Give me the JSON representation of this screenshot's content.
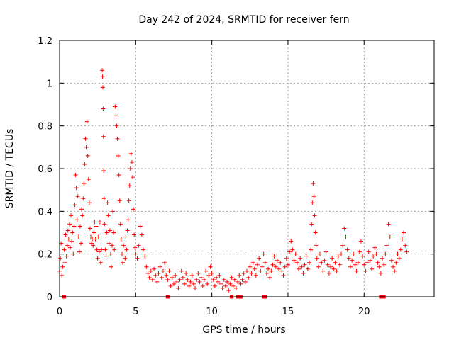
{
  "chart_data": {
    "type": "scatter",
    "title": "Day 242 of 2024, SRMTID for receiver fern",
    "xlabel": "GPS time / hours",
    "ylabel": "SRMTID / TECUs",
    "xlim": [
      0,
      24.6
    ],
    "ylim": [
      0,
      1.2
    ],
    "xticks": [
      0,
      5,
      10,
      15,
      20
    ],
    "yticks": [
      0,
      0.2,
      0.4,
      0.6,
      0.8,
      1,
      1.2
    ],
    "xtick_labels": [
      "0",
      "5",
      "10",
      "15",
      "20"
    ],
    "ytick_labels": [
      "0",
      "0.2",
      "0.4",
      "0.6",
      "0.8",
      "1",
      "1.2"
    ],
    "grid": true,
    "series": [
      {
        "name": "SRMTID",
        "color": "#ff0000",
        "marker": "plus",
        "points": [
          [
            0,
            0.12
          ],
          [
            0.05,
            0.18
          ],
          [
            0.1,
            0.25
          ],
          [
            0.15,
            0.1
          ],
          [
            0.2,
            0.14
          ],
          [
            0.3,
            0.22
          ],
          [
            0.35,
            0.16
          ],
          [
            0.4,
            0.29
          ],
          [
            0.45,
            0.19
          ],
          [
            0.5,
            0.24
          ],
          [
            0.55,
            0.31
          ],
          [
            0.6,
            0.27
          ],
          [
            0.65,
            0.34
          ],
          [
            0.7,
            0.23
          ],
          [
            0.75,
            0.38
          ],
          [
            0.8,
            0.26
          ],
          [
            0.85,
            0.3
          ],
          [
            0.9,
            0.2
          ],
          [
            0.95,
            0.33
          ],
          [
            1,
            0.43
          ],
          [
            1.05,
            0.57
          ],
          [
            1.1,
            0.51
          ],
          [
            1.15,
            0.36
          ],
          [
            1.2,
            0.47
          ],
          [
            1.25,
            0.28
          ],
          [
            1.3,
            0.21
          ],
          [
            1.35,
            0.33
          ],
          [
            1.4,
            0.25
          ],
          [
            1.45,
            0.41
          ],
          [
            1.5,
            0.38
          ],
          [
            1.55,
            0.46
          ],
          [
            1.6,
            0.53
          ],
          [
            1.65,
            0.62
          ],
          [
            1.7,
            0.74
          ],
          [
            1.75,
            0.7
          ],
          [
            1.8,
            0.82
          ],
          [
            1.85,
            0.66
          ],
          [
            1.9,
            0.55
          ],
          [
            1.95,
            0.44
          ],
          [
            2,
            0.32
          ],
          [
            2.05,
            0.28
          ],
          [
            2.1,
            0.25
          ],
          [
            2.15,
            0.27
          ],
          [
            2.2,
            0.24
          ],
          [
            2.25,
            0.3
          ],
          [
            2.3,
            0.35
          ],
          [
            2.35,
            0.27
          ],
          [
            2.4,
            0.33
          ],
          [
            2.45,
            0.22
          ],
          [
            2.5,
            0.18
          ],
          [
            2.55,
            0.28
          ],
          [
            2.6,
            0.21
          ],
          [
            2.65,
            0.35
          ],
          [
            2.7,
            0.16
          ],
          [
            2.75,
            0.22
          ],
          [
            2.8,
            1.06
          ],
          [
            2.82,
            1.03
          ],
          [
            2.84,
            0.98
          ],
          [
            2.86,
            0.88
          ],
          [
            2.88,
            0.75
          ],
          [
            2.9,
            0.59
          ],
          [
            2.92,
            0.46
          ],
          [
            2.95,
            0.34
          ],
          [
            3,
            0.22
          ],
          [
            3.05,
            0.19
          ],
          [
            3.1,
            0.3
          ],
          [
            3.15,
            0.44
          ],
          [
            3.2,
            0.38
          ],
          [
            3.25,
            0.25
          ],
          [
            3.3,
            0.31
          ],
          [
            3.35,
            0.2
          ],
          [
            3.4,
            0.14
          ],
          [
            3.45,
            0.24
          ],
          [
            3.5,
            0.4
          ],
          [
            3.55,
            0.3
          ],
          [
            3.6,
            0.22
          ],
          [
            3.65,
            0.89
          ],
          [
            3.7,
            0.85
          ],
          [
            3.75,
            0.8
          ],
          [
            3.8,
            0.74
          ],
          [
            3.85,
            0.66
          ],
          [
            3.9,
            0.57
          ],
          [
            3.95,
            0.45
          ],
          [
            4,
            0.34
          ],
          [
            4.05,
            0.27
          ],
          [
            4.1,
            0.2
          ],
          [
            4.15,
            0.16
          ],
          [
            4.2,
            0.24
          ],
          [
            4.3,
            0.18
          ],
          [
            4.35,
            0.28
          ],
          [
            4.4,
            0.22
          ],
          [
            4.45,
            0.31
          ],
          [
            4.5,
            0.36
          ],
          [
            4.55,
            0.45
          ],
          [
            4.6,
            0.52
          ],
          [
            4.65,
            0.6
          ],
          [
            4.7,
            0.67
          ],
          [
            4.75,
            0.63
          ],
          [
            4.8,
            0.56
          ],
          [
            4.85,
            0.41
          ],
          [
            4.9,
            0.29
          ],
          [
            4.95,
            0.23
          ],
          [
            5,
            0.2
          ],
          [
            5.1,
            0.18
          ],
          [
            5.2,
            0.24
          ],
          [
            5.3,
            0.33
          ],
          [
            5.4,
            0.29
          ],
          [
            5.5,
            0.22
          ],
          [
            5.6,
            0.19
          ],
          [
            5.7,
            0.14
          ],
          [
            5.8,
            0.11
          ],
          [
            5.9,
            0.09
          ],
          [
            6,
            0.12
          ],
          [
            6.1,
            0.08
          ],
          [
            6.2,
            0.13
          ],
          [
            6.3,
            0.1
          ],
          [
            6.4,
            0.07
          ],
          [
            6.5,
            0.11
          ],
          [
            6.6,
            0.14
          ],
          [
            6.7,
            0.09
          ],
          [
            6.8,
            0.12
          ],
          [
            6.9,
            0.16
          ],
          [
            7,
            0.1
          ],
          [
            7.1,
            0.08
          ],
          [
            7.2,
            0.12
          ],
          [
            7.3,
            0.05
          ],
          [
            7.4,
            0.09
          ],
          [
            7.5,
            0.06
          ],
          [
            7.6,
            0.1
          ],
          [
            7.7,
            0.07
          ],
          [
            7.8,
            0.04
          ],
          [
            7.9,
            0.08
          ],
          [
            8,
            0.12
          ],
          [
            8.1,
            0.09
          ],
          [
            8.2,
            0.06
          ],
          [
            8.3,
            0.11
          ],
          [
            8.4,
            0.08
          ],
          [
            8.5,
            0.05
          ],
          [
            8.6,
            0.07
          ],
          [
            8.7,
            0.1
          ],
          [
            8.8,
            0.06
          ],
          [
            8.9,
            0.04
          ],
          [
            9,
            0.08
          ],
          [
            9.1,
            0.11
          ],
          [
            9.2,
            0.07
          ],
          [
            9.3,
            0.09
          ],
          [
            9.4,
            0.05
          ],
          [
            9.5,
            0.08
          ],
          [
            9.6,
            0.12
          ],
          [
            9.7,
            0.06
          ],
          [
            9.8,
            0.1
          ],
          [
            9.9,
            0.14
          ],
          [
            10,
            0.11
          ],
          [
            10.1,
            0.08
          ],
          [
            10.2,
            0.05
          ],
          [
            10.3,
            0.09
          ],
          [
            10.4,
            0.07
          ],
          [
            10.5,
            0.1
          ],
          [
            10.6,
            0.06
          ],
          [
            10.7,
            0.04
          ],
          [
            10.8,
            0.08
          ],
          [
            10.9,
            0.05
          ],
          [
            11,
            0.07
          ],
          [
            11.1,
            0.03
          ],
          [
            11.2,
            0.06
          ],
          [
            11.3,
            0.09
          ],
          [
            11.4,
            0.05
          ],
          [
            11.5,
            0.08
          ],
          [
            11.6,
            0.04
          ],
          [
            11.7,
            0.07
          ],
          [
            11.8,
            0.1
          ],
          [
            11.9,
            0.06
          ],
          [
            12,
            0.08
          ],
          [
            12.1,
            0.11
          ],
          [
            12.2,
            0.07
          ],
          [
            12.3,
            0.12
          ],
          [
            12.4,
            0.09
          ],
          [
            12.5,
            0.14
          ],
          [
            12.6,
            0.11
          ],
          [
            12.7,
            0.16
          ],
          [
            12.8,
            0.13
          ],
          [
            12.9,
            0.1
          ],
          [
            13,
            0.15
          ],
          [
            13.1,
            0.18
          ],
          [
            13.2,
            0.12
          ],
          [
            13.3,
            0.14
          ],
          [
            13.4,
            0.2
          ],
          [
            13.5,
            0.16
          ],
          [
            13.6,
            0.11
          ],
          [
            13.7,
            0.13
          ],
          [
            13.8,
            0.09
          ],
          [
            13.9,
            0.12
          ],
          [
            14,
            0.15
          ],
          [
            14.1,
            0.19
          ],
          [
            14.2,
            0.14
          ],
          [
            14.3,
            0.17
          ],
          [
            14.4,
            0.13
          ],
          [
            14.5,
            0.16
          ],
          [
            14.6,
            0.12
          ],
          [
            14.7,
            0.1
          ],
          [
            14.8,
            0.14
          ],
          [
            14.9,
            0.18
          ],
          [
            15,
            0.15
          ],
          [
            15.1,
            0.21
          ],
          [
            15.2,
            0.26
          ],
          [
            15.3,
            0.22
          ],
          [
            15.4,
            0.17
          ],
          [
            15.5,
            0.2
          ],
          [
            15.6,
            0.16
          ],
          [
            15.7,
            0.13
          ],
          [
            15.8,
            0.18
          ],
          [
            15.9,
            0.14
          ],
          [
            16,
            0.11
          ],
          [
            16.1,
            0.15
          ],
          [
            16.2,
            0.19
          ],
          [
            16.3,
            0.13
          ],
          [
            16.4,
            0.16
          ],
          [
            16.5,
            0.22
          ],
          [
            16.55,
            0.34
          ],
          [
            16.6,
            0.44
          ],
          [
            16.65,
            0.53
          ],
          [
            16.7,
            0.47
          ],
          [
            16.75,
            0.38
          ],
          [
            16.8,
            0.3
          ],
          [
            16.85,
            0.24
          ],
          [
            16.9,
            0.18
          ],
          [
            17,
            0.14
          ],
          [
            17.1,
            0.2
          ],
          [
            17.2,
            0.16
          ],
          [
            17.3,
            0.12
          ],
          [
            17.4,
            0.17
          ],
          [
            17.5,
            0.21
          ],
          [
            17.6,
            0.15
          ],
          [
            17.7,
            0.11
          ],
          [
            17.8,
            0.14
          ],
          [
            17.9,
            0.18
          ],
          [
            18,
            0.13
          ],
          [
            18.1,
            0.16
          ],
          [
            18.2,
            0.12
          ],
          [
            18.3,
            0.19
          ],
          [
            18.4,
            0.15
          ],
          [
            18.5,
            0.2
          ],
          [
            18.6,
            0.24
          ],
          [
            18.7,
            0.32
          ],
          [
            18.8,
            0.28
          ],
          [
            18.9,
            0.22
          ],
          [
            19,
            0.18
          ],
          [
            19.1,
            0.14
          ],
          [
            19.2,
            0.17
          ],
          [
            19.3,
            0.2
          ],
          [
            19.4,
            0.15
          ],
          [
            19.5,
            0.12
          ],
          [
            19.6,
            0.16
          ],
          [
            19.7,
            0.21
          ],
          [
            19.8,
            0.26
          ],
          [
            19.9,
            0.19
          ],
          [
            20,
            0.15
          ],
          [
            20.1,
            0.12
          ],
          [
            20.2,
            0.16
          ],
          [
            20.3,
            0.21
          ],
          [
            20.4,
            0.17
          ],
          [
            20.5,
            0.13
          ],
          [
            20.6,
            0.19
          ],
          [
            20.7,
            0.23
          ],
          [
            20.8,
            0.2
          ],
          [
            20.9,
            0.16
          ],
          [
            21,
            0.14
          ],
          [
            21.1,
            0.11
          ],
          [
            21.2,
            0.18
          ],
          [
            21.3,
            0.15
          ],
          [
            21.4,
            0.2
          ],
          [
            21.5,
            0.24
          ],
          [
            21.6,
            0.34
          ],
          [
            21.7,
            0.28
          ],
          [
            21.8,
            0.17
          ],
          [
            21.9,
            0.14
          ],
          [
            22,
            0.12
          ],
          [
            22.1,
            0.16
          ],
          [
            22.2,
            0.2
          ],
          [
            22.3,
            0.18
          ],
          [
            22.4,
            0.22
          ],
          [
            22.5,
            0.27
          ],
          [
            22.6,
            0.3
          ],
          [
            22.7,
            0.24
          ],
          [
            22.8,
            0.21
          ]
        ]
      }
    ],
    "zero_markers": [
      0.3,
      7.1,
      11.3,
      11.7,
      11.9,
      13.4,
      13.5,
      21.1,
      21.3
    ]
  }
}
